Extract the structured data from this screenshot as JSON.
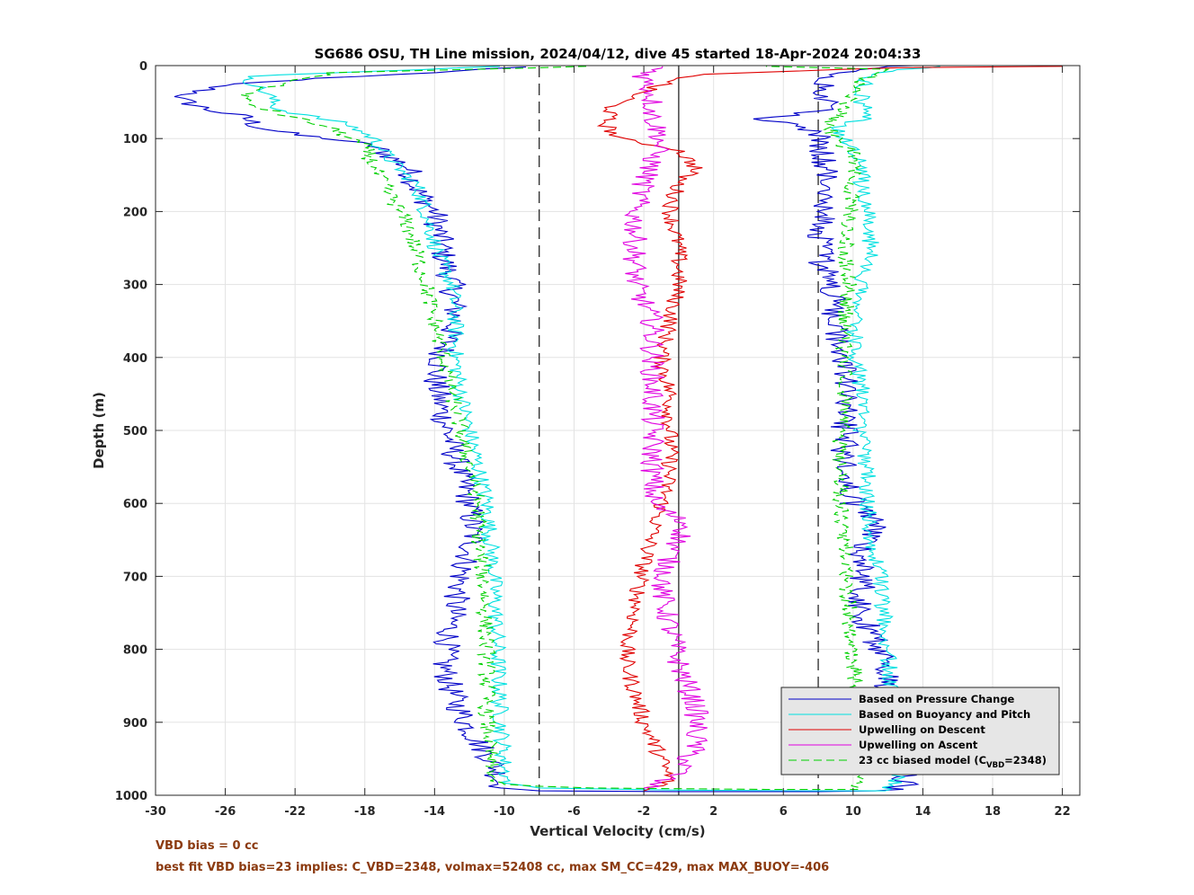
{
  "chart_data": {
    "type": "line",
    "title": "SG686 OSU, TH Line mission, 2024/04/12, dive 45 started 18-Apr-2024 20:04:33",
    "xlabel": "Vertical Velocity (cm/s)",
    "ylabel": "Depth (m)",
    "xlim": [
      -30,
      23
    ],
    "ylim": [
      0,
      1000
    ],
    "y_reversed": true,
    "xticks": [
      "-30",
      "-26",
      "-22",
      "-18",
      "-14",
      "-10",
      "-6",
      "-2",
      "2",
      "6",
      "10",
      "14",
      "18",
      "22"
    ],
    "yticks": [
      "0",
      "100",
      "200",
      "300",
      "400",
      "500",
      "600",
      "700",
      "800",
      "900",
      "1000"
    ],
    "grid": true,
    "legend_position": "bottom-right",
    "vertical_lines": [
      {
        "x": -8,
        "style": "dashed"
      },
      {
        "x": 0,
        "style": "solid"
      },
      {
        "x": 8,
        "style": "dashed"
      }
    ],
    "series": [
      {
        "name": "Based on Pressure Change",
        "color": "#0000c8",
        "style": "solid",
        "noise": 0.8,
        "points": [
          [
            -9,
            2
          ],
          [
            -26,
            25
          ],
          [
            -28.8,
            45
          ],
          [
            -27,
            60
          ],
          [
            -25,
            70
          ],
          [
            -24,
            85
          ],
          [
            -22,
            95
          ],
          [
            -20,
            100
          ],
          [
            -17.5,
            110
          ],
          [
            -15.5,
            140
          ],
          [
            -15,
            170
          ],
          [
            -14,
            200
          ],
          [
            -13.5,
            260
          ],
          [
            -13,
            300
          ],
          [
            -12.8,
            350
          ],
          [
            -13.5,
            390
          ],
          [
            -14,
            430
          ],
          [
            -13.5,
            480
          ],
          [
            -12.8,
            540
          ],
          [
            -12,
            600
          ],
          [
            -11.8,
            650
          ],
          [
            -12.5,
            700
          ],
          [
            -13,
            760
          ],
          [
            -13.5,
            820
          ],
          [
            -13,
            860
          ],
          [
            -12,
            910
          ],
          [
            -10.5,
            960
          ],
          [
            -10.2,
            990
          ],
          [
            -8,
            994
          ],
          [
            0,
            995
          ],
          [
            8,
            995
          ],
          [
            12,
            994
          ],
          [
            13,
            985
          ],
          [
            12.8,
            960
          ],
          [
            12.5,
            900
          ],
          [
            12,
            850
          ],
          [
            11.5,
            800
          ],
          [
            10.5,
            750
          ],
          [
            10.5,
            700
          ],
          [
            10.5,
            660
          ],
          [
            11.5,
            630
          ],
          [
            10,
            600
          ],
          [
            9.5,
            560
          ],
          [
            9.5,
            500
          ],
          [
            9.5,
            450
          ],
          [
            9.5,
            400
          ],
          [
            8.8,
            350
          ],
          [
            8.8,
            300
          ],
          [
            8.2,
            270
          ],
          [
            8.2,
            230
          ],
          [
            8.5,
            200
          ],
          [
            8.5,
            160
          ],
          [
            8.3,
            120
          ],
          [
            8,
            90
          ],
          [
            5,
            73
          ],
          [
            8.5,
            60
          ],
          [
            8.5,
            30
          ],
          [
            8.8,
            10
          ],
          [
            12,
            1
          ],
          [
            13.5,
            0
          ]
        ]
      },
      {
        "name": "Based on Buoyancy and Pitch",
        "color": "#00e0e0",
        "style": "solid",
        "noise": 0.5,
        "points": [
          [
            -10,
            1
          ],
          [
            -25,
            15
          ],
          [
            -23.5,
            40
          ],
          [
            -23,
            60
          ],
          [
            -21,
            70
          ],
          [
            -19,
            80
          ],
          [
            -17.5,
            100
          ],
          [
            -16.5,
            130
          ],
          [
            -15,
            165
          ],
          [
            -14.5,
            200
          ],
          [
            -13.8,
            260
          ],
          [
            -13,
            300
          ],
          [
            -12.8,
            350
          ],
          [
            -12.8,
            400
          ],
          [
            -12.5,
            450
          ],
          [
            -12,
            500
          ],
          [
            -11.5,
            550
          ],
          [
            -11,
            600
          ],
          [
            -10.8,
            650
          ],
          [
            -10.6,
            700
          ],
          [
            -10.4,
            800
          ],
          [
            -10.2,
            900
          ],
          [
            -10,
            960
          ],
          [
            -9.8,
            985
          ],
          [
            -8,
            990
          ],
          [
            0,
            993
          ],
          [
            8,
            994
          ],
          [
            12,
            994
          ],
          [
            12.5,
            980
          ],
          [
            12.5,
            900
          ],
          [
            12.2,
            850
          ],
          [
            12,
            800
          ],
          [
            11.5,
            700
          ],
          [
            11,
            650
          ],
          [
            10.8,
            600
          ],
          [
            10.8,
            550
          ],
          [
            10.5,
            500
          ],
          [
            10.5,
            450
          ],
          [
            10.2,
            400
          ],
          [
            10,
            350
          ],
          [
            10.5,
            300
          ],
          [
            11,
            260
          ],
          [
            11,
            230
          ],
          [
            10.8,
            200
          ],
          [
            10.5,
            160
          ],
          [
            10.5,
            130
          ],
          [
            9.5,
            100
          ],
          [
            9,
            85
          ],
          [
            11,
            70
          ],
          [
            10.5,
            50
          ],
          [
            10.5,
            30
          ],
          [
            11,
            10
          ],
          [
            15,
            1
          ]
        ]
      },
      {
        "name": "Upwelling on Descent",
        "color": "#e00000",
        "style": "solid",
        "noise": 0.5,
        "points": [
          [
            22,
            1
          ],
          [
            12,
            3
          ],
          [
            1,
            12
          ],
          [
            -1.5,
            30
          ],
          [
            -3.8,
            55
          ],
          [
            -4.2,
            80
          ],
          [
            -3.5,
            100
          ],
          [
            0,
            115
          ],
          [
            1,
            140
          ],
          [
            0,
            160
          ],
          [
            -0.5,
            200
          ],
          [
            0,
            250
          ],
          [
            0,
            300
          ],
          [
            -0.5,
            350
          ],
          [
            -1,
            400
          ],
          [
            -0.5,
            450
          ],
          [
            -0.5,
            500
          ],
          [
            -0.5,
            550
          ],
          [
            -0.8,
            590
          ],
          [
            -1.5,
            640
          ],
          [
            -2.2,
            700
          ],
          [
            -2.5,
            750
          ],
          [
            -3,
            800
          ],
          [
            -3,
            820
          ],
          [
            -2.5,
            860
          ],
          [
            -2,
            900
          ],
          [
            -1,
            950
          ],
          [
            -0.5,
            980
          ],
          [
            -2,
            994
          ]
        ]
      },
      {
        "name": "Upwelling on Ascent",
        "color": "#e000e0",
        "style": "solid",
        "noise": 0.7,
        "points": [
          [
            -1,
            1
          ],
          [
            -2,
            15
          ],
          [
            -1.5,
            40
          ],
          [
            -1.5,
            70
          ],
          [
            -1,
            100
          ],
          [
            -1.5,
            130
          ],
          [
            -2,
            160
          ],
          [
            -2.5,
            200
          ],
          [
            -2.5,
            250
          ],
          [
            -2.5,
            300
          ],
          [
            -1.5,
            350
          ],
          [
            -1.5,
            400
          ],
          [
            -1.5,
            450
          ],
          [
            -1.5,
            500
          ],
          [
            -1.5,
            550
          ],
          [
            -1.5,
            600
          ],
          [
            0.5,
            630
          ],
          [
            -0.5,
            670
          ],
          [
            -1,
            720
          ],
          [
            -0.5,
            770
          ],
          [
            0,
            820
          ],
          [
            1,
            880
          ],
          [
            1,
            930
          ],
          [
            0,
            970
          ],
          [
            -2,
            990
          ]
        ]
      },
      {
        "name": "23 cc biased model (C_VBD=2348)",
        "color": "#00d000",
        "style": "dashed",
        "noise": 0.5,
        "points": [
          [
            -5,
            1
          ],
          [
            -20,
            10
          ],
          [
            -24.5,
            35
          ],
          [
            -25,
            50
          ],
          [
            -23,
            65
          ],
          [
            -20,
            85
          ],
          [
            -18,
            110
          ],
          [
            -17.5,
            140
          ],
          [
            -16.5,
            180
          ],
          [
            -15.5,
            220
          ],
          [
            -15,
            260
          ],
          [
            -14.5,
            300
          ],
          [
            -14,
            350
          ],
          [
            -13.5,
            400
          ],
          [
            -13,
            450
          ],
          [
            -12.5,
            500
          ],
          [
            -12,
            550
          ],
          [
            -11.5,
            600
          ],
          [
            -11.5,
            650
          ],
          [
            -11.2,
            700
          ],
          [
            -11,
            800
          ],
          [
            -11,
            900
          ],
          [
            -10.8,
            960
          ],
          [
            -10.5,
            985
          ],
          [
            -5,
            990
          ],
          [
            5,
            992
          ],
          [
            10,
            992
          ],
          [
            10.5,
            960
          ],
          [
            10.5,
            900
          ],
          [
            10.2,
            850
          ],
          [
            10,
            800
          ],
          [
            9.8,
            750
          ],
          [
            9.5,
            700
          ],
          [
            9.5,
            650
          ],
          [
            9.3,
            600
          ],
          [
            9.3,
            550
          ],
          [
            9.3,
            500
          ],
          [
            9.5,
            450
          ],
          [
            9.5,
            400
          ],
          [
            9.5,
            350
          ],
          [
            9.8,
            300
          ],
          [
            9.5,
            250
          ],
          [
            9.8,
            200
          ],
          [
            10,
            150
          ],
          [
            10,
            120
          ],
          [
            9,
            100
          ],
          [
            8.5,
            80
          ],
          [
            9.5,
            60
          ],
          [
            10,
            40
          ],
          [
            10.5,
            20
          ],
          [
            12,
            5
          ],
          [
            5,
            1
          ]
        ]
      }
    ],
    "legend_subscript": "VBD",
    "legend_last_prefix": "23 cc biased model (C",
    "legend_last_suffix": "=2348)"
  },
  "notes": {
    "line1": "VBD bias = 0 cc",
    "line2": "best fit VBD bias=23 implies: C_VBD=2348, volmax=52408 cc, max SM_CC=429, max MAX_BUOY=-406",
    "color": "#8b3a0f"
  }
}
